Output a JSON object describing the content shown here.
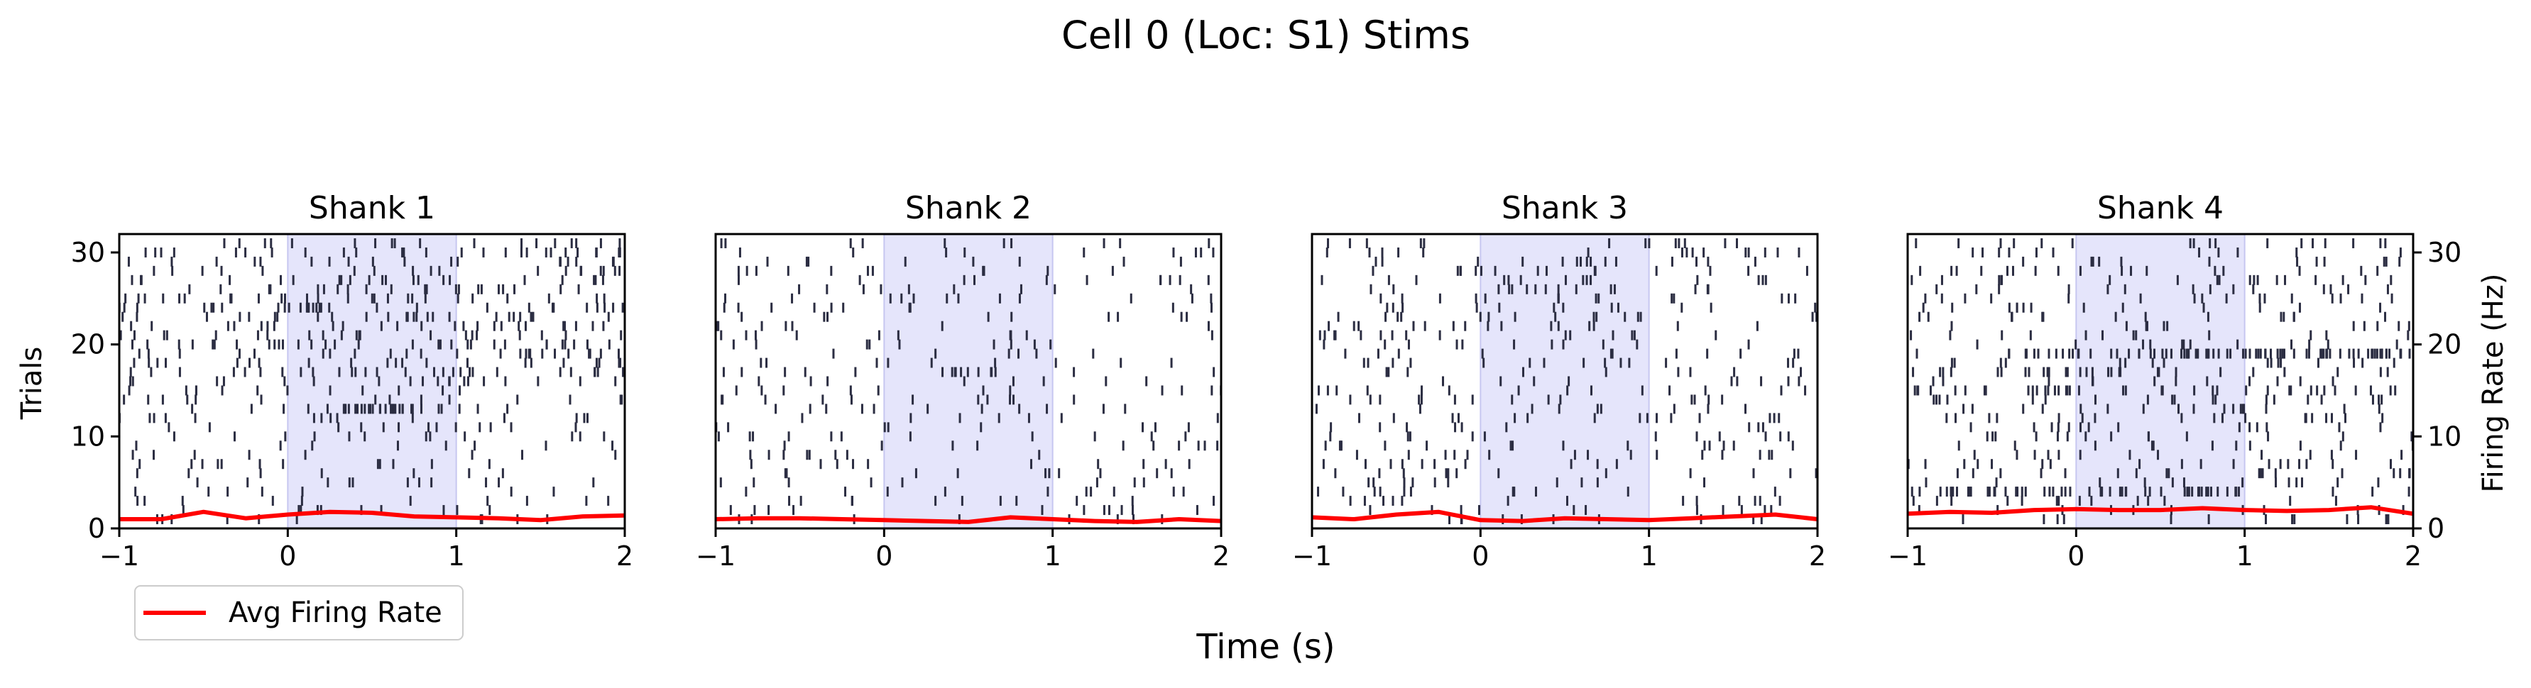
{
  "figure": {
    "suptitle": "Cell 0 (Loc: S1) Stims",
    "xlabel": "Time (s)",
    "left_ylabel": "Trials",
    "right_ylabel": "Firing Rate (Hz)",
    "legend": {
      "label": "Avg Firing Rate",
      "placement": "below-left"
    }
  },
  "colors": {
    "spike": "#2b2d42",
    "rate": "#ff0000",
    "stim_shade": "#e5e5fb",
    "stim_edge": "#c7c7f0"
  },
  "chart_data": [
    {
      "type": "raster",
      "title": "Shank 1",
      "xlim": [
        -1,
        2
      ],
      "ylim": [
        0,
        32
      ],
      "xticks": [
        -1,
        0,
        1,
        2
      ],
      "yticks": [
        0,
        10,
        20,
        30
      ],
      "stim_window": [
        0,
        1
      ],
      "n_trials": 31,
      "seed": 11,
      "spike_rates": [
        {
          "from": 0,
          "to": 1,
          "x0": -1,
          "x1": 2,
          "rate": 4
        },
        {
          "from": 2,
          "to": 8,
          "x0": -1,
          "x1": 2,
          "rate": 3
        },
        {
          "from": 9,
          "to": 14,
          "x0": -1,
          "x1": 2,
          "rate": 5
        },
        {
          "from": 12,
          "to": 12,
          "x0": 0.3,
          "x1": 0.75,
          "rate": 40
        },
        {
          "from": 15,
          "to": 31,
          "x0": -1,
          "x1": 2,
          "rate": 8
        }
      ],
      "rate_series": {
        "name": "Avg Firing Rate",
        "x": [
          -1,
          -0.75,
          -0.5,
          -0.25,
          0,
          0.25,
          0.5,
          0.75,
          1,
          1.25,
          1.5,
          1.75,
          2
        ],
        "y": [
          1.0,
          1.0,
          1.8,
          1.1,
          1.5,
          1.8,
          1.7,
          1.3,
          1.2,
          1.1,
          0.9,
          1.3,
          1.4
        ]
      }
    },
    {
      "type": "raster",
      "title": "Shank 2",
      "xlim": [
        -1,
        2
      ],
      "ylim": [
        0,
        32
      ],
      "xticks": [
        -1,
        0,
        1,
        2
      ],
      "yticks": [
        0,
        10,
        20,
        30
      ],
      "stim_window": [
        0,
        1
      ],
      "n_trials": 31,
      "seed": 22,
      "spike_rates": [
        {
          "from": 0,
          "to": 31,
          "x0": -1,
          "x1": 2,
          "rate": 3
        },
        {
          "from": 16,
          "to": 16,
          "x0": 0.4,
          "x1": 0.8,
          "rate": 14
        }
      ],
      "rate_series": {
        "name": "Avg Firing Rate",
        "x": [
          -1,
          -0.75,
          -0.5,
          -0.25,
          0,
          0.25,
          0.5,
          0.75,
          1,
          1.25,
          1.5,
          1.75,
          2
        ],
        "y": [
          1.0,
          1.1,
          1.1,
          1.0,
          0.9,
          0.8,
          0.7,
          1.2,
          1.0,
          0.8,
          0.7,
          1.0,
          0.8
        ]
      }
    },
    {
      "type": "raster",
      "title": "Shank 3",
      "xlim": [
        -1,
        2
      ],
      "ylim": [
        0,
        32
      ],
      "xticks": [
        -1,
        0,
        1,
        2
      ],
      "yticks": [
        0,
        10,
        20,
        30
      ],
      "stim_window": [
        0,
        1
      ],
      "n_trials": 31,
      "seed": 33,
      "spike_rates": [
        {
          "from": 0,
          "to": 31,
          "x0": -1,
          "x1": 2,
          "rate": 4
        }
      ],
      "rate_series": {
        "name": "Avg Firing Rate",
        "x": [
          -1,
          -0.75,
          -0.5,
          -0.25,
          0,
          0.25,
          0.5,
          0.75,
          1,
          1.25,
          1.5,
          1.75,
          2
        ],
        "y": [
          1.2,
          1.0,
          1.5,
          1.8,
          0.9,
          0.8,
          1.1,
          1.0,
          0.9,
          1.1,
          1.3,
          1.5,
          1.0
        ]
      }
    },
    {
      "type": "raster",
      "title": "Shank 4",
      "xlim": [
        -1,
        2
      ],
      "ylim": [
        0,
        32
      ],
      "xticks": [
        -1,
        0,
        1,
        2
      ],
      "yticks": [
        0,
        10,
        20,
        30
      ],
      "stim_window": [
        0,
        1
      ],
      "n_trials": 31,
      "seed": 44,
      "spike_rates": [
        {
          "from": 0,
          "to": 31,
          "x0": -1,
          "x1": 2,
          "rate": 5
        },
        {
          "from": 3,
          "to": 3,
          "x0": -1,
          "x1": 1,
          "rate": 22
        },
        {
          "from": 14,
          "to": 14,
          "x0": -1,
          "x1": 2,
          "rate": 12
        },
        {
          "from": 16,
          "to": 16,
          "x0": -1,
          "x1": 2,
          "rate": 10
        },
        {
          "from": 18,
          "to": 18,
          "x0": -0.3,
          "x1": 2,
          "rate": 28
        }
      ],
      "rate_series": {
        "name": "Avg Firing Rate",
        "x": [
          -1,
          -0.75,
          -0.5,
          -0.25,
          0,
          0.25,
          0.5,
          0.75,
          1,
          1.25,
          1.5,
          1.75,
          2
        ],
        "y": [
          1.6,
          1.8,
          1.7,
          2.0,
          2.1,
          2.0,
          2.0,
          2.2,
          2.0,
          1.9,
          2.0,
          2.3,
          1.6
        ]
      }
    }
  ]
}
